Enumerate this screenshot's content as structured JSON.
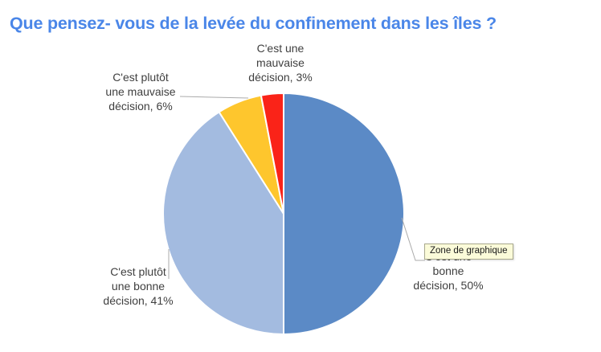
{
  "header": {
    "title": "Que pensez- vous de la levée du confinement dans les îles ?"
  },
  "tooltip": {
    "text": "Zone de graphique"
  },
  "colors": {
    "title_text": "#4a86e8",
    "label_text": "#3f3f3f",
    "leader_line": "#ababab",
    "tooltip_background": "#fbfbd9",
    "tooltip_border": "#a9a98d",
    "slice_separator": "#ffffff"
  },
  "chart_data": {
    "type": "pie",
    "title": "Que pensez- vous de la levée du confinement dans les îles ?",
    "unit": "%",
    "direction": "clockwise",
    "start_angle_deg": 0,
    "legend": "none",
    "categories": [
      "C'est une bonne décision",
      "C'est plutôt une bonne décision",
      "C'est plutôt une mauvaise décision",
      "C'est une mauvaise décision"
    ],
    "values": [
      50,
      41,
      6,
      3
    ],
    "colors": [
      "#5b8ac6",
      "#a3bbe0",
      "#fec62d",
      "#fa2318"
    ],
    "labels": [
      {
        "lines": [
          "C'est une",
          "bonne",
          "décision, 50%"
        ]
      },
      {
        "lines": [
          "C'est plutôt",
          "une bonne",
          "décision, 41%"
        ]
      },
      {
        "lines": [
          "C'est plutôt",
          "une mauvaise",
          "décision, 6%"
        ]
      },
      {
        "lines": [
          "C'est une",
          "mauvaise",
          "décision, 3%"
        ]
      }
    ]
  }
}
